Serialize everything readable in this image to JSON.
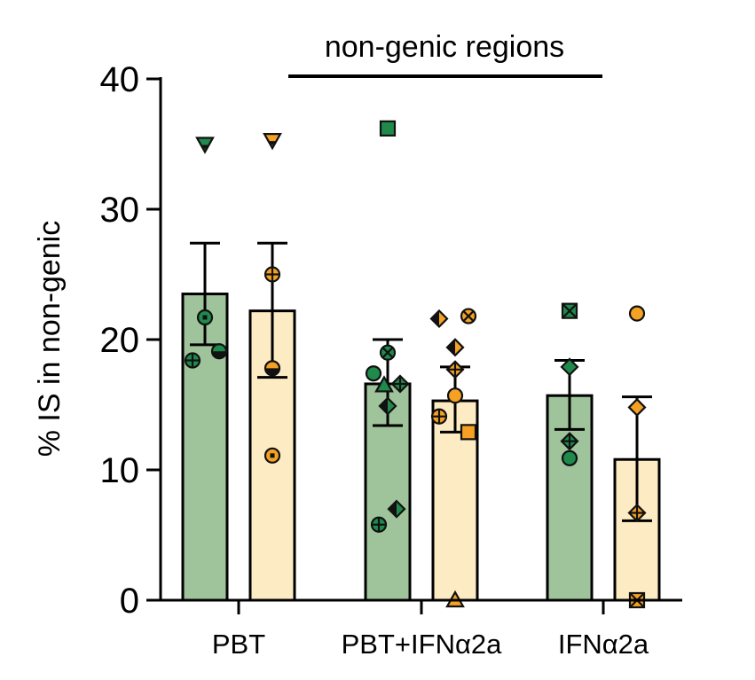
{
  "chart_data": {
    "type": "bar",
    "annotation": "non-genic regions",
    "ylabel": "% IS in non-genic",
    "ylim": [
      0,
      40
    ],
    "yticks": [
      0,
      10,
      20,
      30,
      40
    ],
    "grid": false,
    "categories": [
      "PBT",
      "PBT+IFNα2a",
      "IFNα2a"
    ],
    "colors": {
      "green": "#9fc39a",
      "yellow": "#fdebc4",
      "green_marker": "#1f8a4c",
      "orange_marker": "#f4a124"
    },
    "bars": [
      {
        "group": 0,
        "variant": "green",
        "mean": 23.5,
        "err_low": 19.6,
        "err_high": 27.4
      },
      {
        "group": 0,
        "variant": "yellow",
        "mean": 22.2,
        "err_low": 17.1,
        "err_high": 27.4
      },
      {
        "group": 1,
        "variant": "green",
        "mean": 16.6,
        "err_low": 13.4,
        "err_high": 20.0
      },
      {
        "group": 1,
        "variant": "yellow",
        "mean": 15.3,
        "err_low": 12.9,
        "err_high": 17.9
      },
      {
        "group": 2,
        "variant": "green",
        "mean": 15.7,
        "err_low": 13.1,
        "err_high": 18.4
      },
      {
        "group": 2,
        "variant": "yellow",
        "mean": 10.8,
        "err_low": 6.1,
        "err_high": 15.6
      }
    ],
    "points": [
      {
        "bar": 0,
        "dx": 0,
        "y": 35.0,
        "shape": "tri-down"
      },
      {
        "bar": 0,
        "dx": 0,
        "y": 21.7,
        "shape": "circle-dot"
      },
      {
        "bar": 0,
        "dx": -14,
        "y": 18.4,
        "shape": "circle-cross"
      },
      {
        "bar": 0,
        "dx": 16,
        "y": 19.1,
        "shape": "circle-half"
      },
      {
        "bar": 1,
        "dx": 0,
        "y": 35.3,
        "shape": "tri-down"
      },
      {
        "bar": 1,
        "dx": 0,
        "y": 25.0,
        "shape": "circle-cross"
      },
      {
        "bar": 1,
        "dx": 0,
        "y": 17.8,
        "shape": "circle-half"
      },
      {
        "bar": 1,
        "dx": 0,
        "y": 11.1,
        "shape": "circle-dot"
      },
      {
        "bar": 2,
        "dx": 0,
        "y": 36.2,
        "shape": "square"
      },
      {
        "bar": 2,
        "dx": -16,
        "y": 17.4,
        "shape": "circle"
      },
      {
        "bar": 2,
        "dx": 0,
        "y": 19.0,
        "shape": "circle-x"
      },
      {
        "bar": 2,
        "dx": -4,
        "y": 16.5,
        "shape": "triangle"
      },
      {
        "bar": 2,
        "dx": 14,
        "y": 16.6,
        "shape": "diamond-cross"
      },
      {
        "bar": 2,
        "dx": 0,
        "y": 14.9,
        "shape": "diamond-half"
      },
      {
        "bar": 2,
        "dx": 10,
        "y": 7.0,
        "shape": "diamond-half"
      },
      {
        "bar": 2,
        "dx": -10,
        "y": 5.8,
        "shape": "circle-cross"
      },
      {
        "bar": 3,
        "dx": -18,
        "y": 21.6,
        "shape": "diamond-half"
      },
      {
        "bar": 3,
        "dx": 15,
        "y": 21.8,
        "shape": "circle-x"
      },
      {
        "bar": 3,
        "dx": 0,
        "y": 19.4,
        "shape": "diamond-half"
      },
      {
        "bar": 3,
        "dx": 0,
        "y": 17.7,
        "shape": "diamond-cross"
      },
      {
        "bar": 3,
        "dx": 0,
        "y": 15.7,
        "shape": "circle"
      },
      {
        "bar": 3,
        "dx": -18,
        "y": 14.1,
        "shape": "circle-cross"
      },
      {
        "bar": 3,
        "dx": 15,
        "y": 12.9,
        "shape": "square"
      },
      {
        "bar": 3,
        "dx": 0,
        "y": 0,
        "shape": "triangle"
      },
      {
        "bar": 4,
        "dx": 0,
        "y": 22.2,
        "shape": "square-x"
      },
      {
        "bar": 4,
        "dx": 0,
        "y": 17.9,
        "shape": "diamond"
      },
      {
        "bar": 4,
        "dx": 0,
        "y": 12.2,
        "shape": "diamond-cross"
      },
      {
        "bar": 4,
        "dx": 0,
        "y": 10.9,
        "shape": "circle"
      },
      {
        "bar": 5,
        "dx": 0,
        "y": 22.0,
        "shape": "circle"
      },
      {
        "bar": 5,
        "dx": 0,
        "y": 14.8,
        "shape": "diamond"
      },
      {
        "bar": 5,
        "dx": 0,
        "y": 6.7,
        "shape": "diamond-cross"
      },
      {
        "bar": 5,
        "dx": 0,
        "y": 0,
        "shape": "square-x"
      }
    ]
  }
}
